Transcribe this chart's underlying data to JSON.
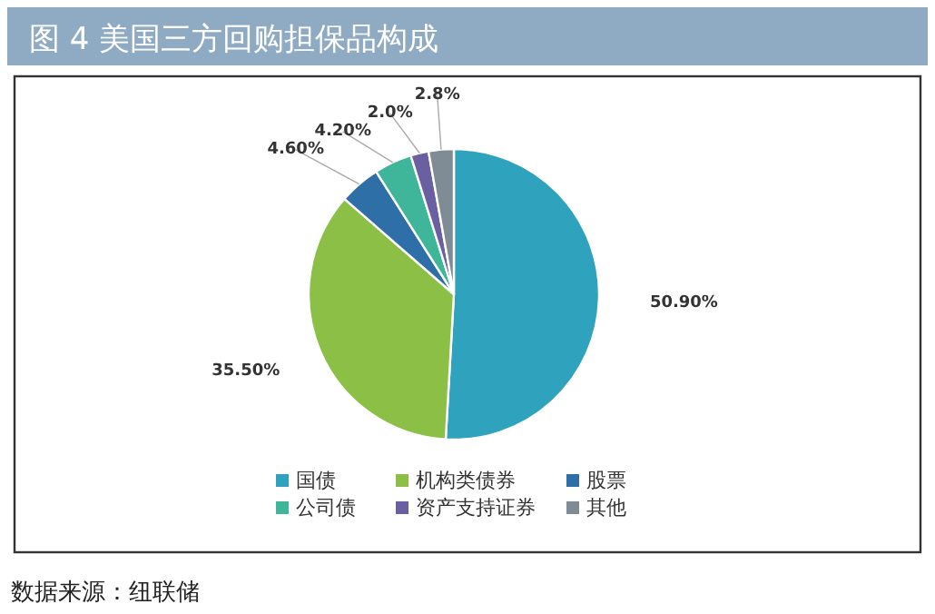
{
  "chart_data": {
    "type": "pie",
    "title": "图 4  美国三方回购担保品构成",
    "categories": [
      "国债",
      "机构类债券",
      "股票",
      "公司债",
      "资产支持证券",
      "其他"
    ],
    "values": [
      50.9,
      35.5,
      4.6,
      4.2,
      2.0,
      2.8
    ],
    "value_labels": [
      "50.90%",
      "35.50%",
      "4.60%",
      "4.20%",
      "2.0%",
      "2.8%"
    ],
    "colors": [
      "#2fa3bd",
      "#8cbf45",
      "#2e6fa8",
      "#3fb59a",
      "#6a5fa0",
      "#7f8c95"
    ],
    "legend": "bottom",
    "annotations": [
      "数据来源：纽联储"
    ]
  }
}
